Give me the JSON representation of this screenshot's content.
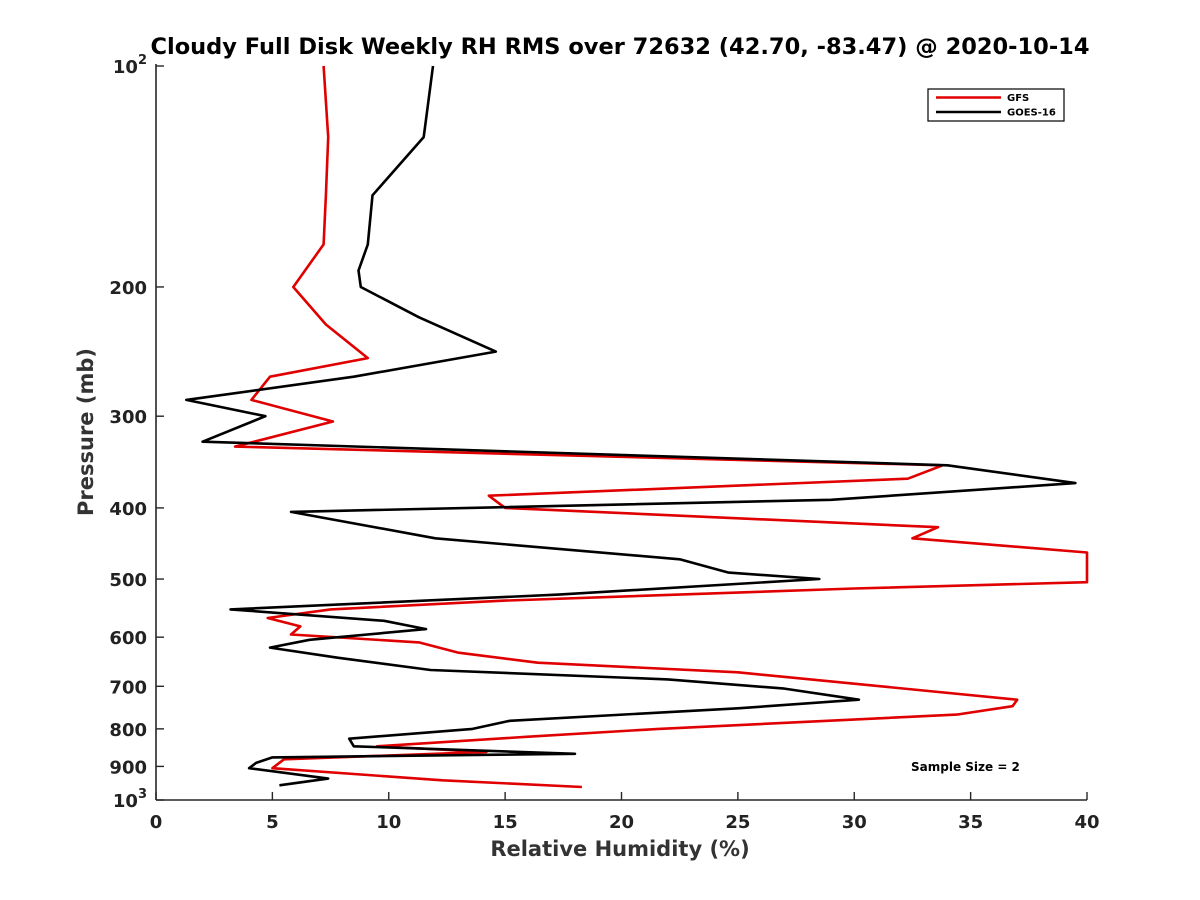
{
  "chart_data": {
    "type": "line",
    "title": "Cloudy Full Disk Weekly RH RMS over 72632 (42.70, -83.47) @ 2020-10-14",
    "xlabel": "Relative Humidity (%)",
    "ylabel": "Pressure (mb)",
    "xlim": [
      0,
      40
    ],
    "ylim": [
      100,
      1000
    ],
    "y_scale": "log",
    "y_reversed": true,
    "x_ticks": [
      "0",
      "5",
      "10",
      "15",
      "20",
      "25",
      "30",
      "35",
      "40"
    ],
    "y_ticks": [
      {
        "value": 100,
        "base": "10",
        "exp": "2"
      },
      {
        "value": 200,
        "label": "200"
      },
      {
        "value": 300,
        "label": "300"
      },
      {
        "value": 400,
        "label": "400"
      },
      {
        "value": 500,
        "label": "500"
      },
      {
        "value": 600,
        "label": "600"
      },
      {
        "value": 700,
        "label": "700"
      },
      {
        "value": 800,
        "label": "800"
      },
      {
        "value": 900,
        "label": "900"
      },
      {
        "value": 1000,
        "base": "10",
        "exp": "3"
      }
    ],
    "legend_position": "top-right",
    "annotation": "Sample Size = 2",
    "series": [
      {
        "name": "GFS",
        "color": "#e00000",
        "points": [
          [
            7.2,
            100
          ],
          [
            7.4,
            125
          ],
          [
            7.3,
            150
          ],
          [
            7.2,
            175
          ],
          [
            5.9,
            200
          ],
          [
            7.3,
            225
          ],
          [
            9.1,
            250
          ],
          [
            4.9,
            265
          ],
          [
            4.1,
            285
          ],
          [
            7.6,
            305
          ],
          [
            3.4,
            330
          ],
          [
            33.8,
            350
          ],
          [
            32.3,
            365
          ],
          [
            14.3,
            385
          ],
          [
            15.0,
            400
          ],
          [
            33.6,
            425
          ],
          [
            32.5,
            440
          ],
          [
            40.0,
            460
          ],
          [
            40.0,
            505
          ],
          [
            30.0,
            515
          ],
          [
            15.0,
            535
          ],
          [
            7.5,
            550
          ],
          [
            4.8,
            565
          ],
          [
            6.2,
            580
          ],
          [
            5.8,
            595
          ],
          [
            11.3,
            610
          ],
          [
            13.0,
            630
          ],
          [
            16.4,
            650
          ],
          [
            25.0,
            670
          ],
          [
            37.0,
            730
          ],
          [
            36.8,
            745
          ],
          [
            34.4,
            765
          ],
          [
            21.6,
            800
          ],
          [
            16.0,
            820
          ],
          [
            9.5,
            845
          ],
          [
            14.2,
            860
          ],
          [
            5.5,
            880
          ],
          [
            5.0,
            905
          ],
          [
            12.3,
            940
          ],
          [
            18.3,
            960
          ]
        ]
      },
      {
        "name": "GOES-16",
        "color": "#000000",
        "points": [
          [
            11.9,
            100
          ],
          [
            11.5,
            125
          ],
          [
            9.3,
            150
          ],
          [
            9.1,
            175
          ],
          [
            8.7,
            190
          ],
          [
            8.8,
            200
          ],
          [
            11.3,
            220
          ],
          [
            14.6,
            245
          ],
          [
            8.5,
            265
          ],
          [
            1.3,
            285
          ],
          [
            4.7,
            300
          ],
          [
            2.0,
            325
          ],
          [
            34.0,
            350
          ],
          [
            39.5,
            370
          ],
          [
            29.0,
            390
          ],
          [
            5.8,
            405
          ],
          [
            12.0,
            440
          ],
          [
            22.5,
            470
          ],
          [
            24.6,
            490
          ],
          [
            28.5,
            500
          ],
          [
            17.3,
            525
          ],
          [
            3.2,
            550
          ],
          [
            9.8,
            570
          ],
          [
            11.6,
            585
          ],
          [
            6.6,
            605
          ],
          [
            4.9,
            620
          ],
          [
            7.8,
            640
          ],
          [
            11.8,
            665
          ],
          [
            22.0,
            685
          ],
          [
            27.0,
            705
          ],
          [
            30.2,
            730
          ],
          [
            25.0,
            750
          ],
          [
            15.2,
            780
          ],
          [
            13.6,
            800
          ],
          [
            8.3,
            825
          ],
          [
            8.5,
            845
          ],
          [
            18.0,
            865
          ],
          [
            5.0,
            875
          ],
          [
            4.3,
            890
          ],
          [
            4.0,
            905
          ],
          [
            7.4,
            935
          ],
          [
            5.3,
            955
          ]
        ]
      }
    ]
  }
}
